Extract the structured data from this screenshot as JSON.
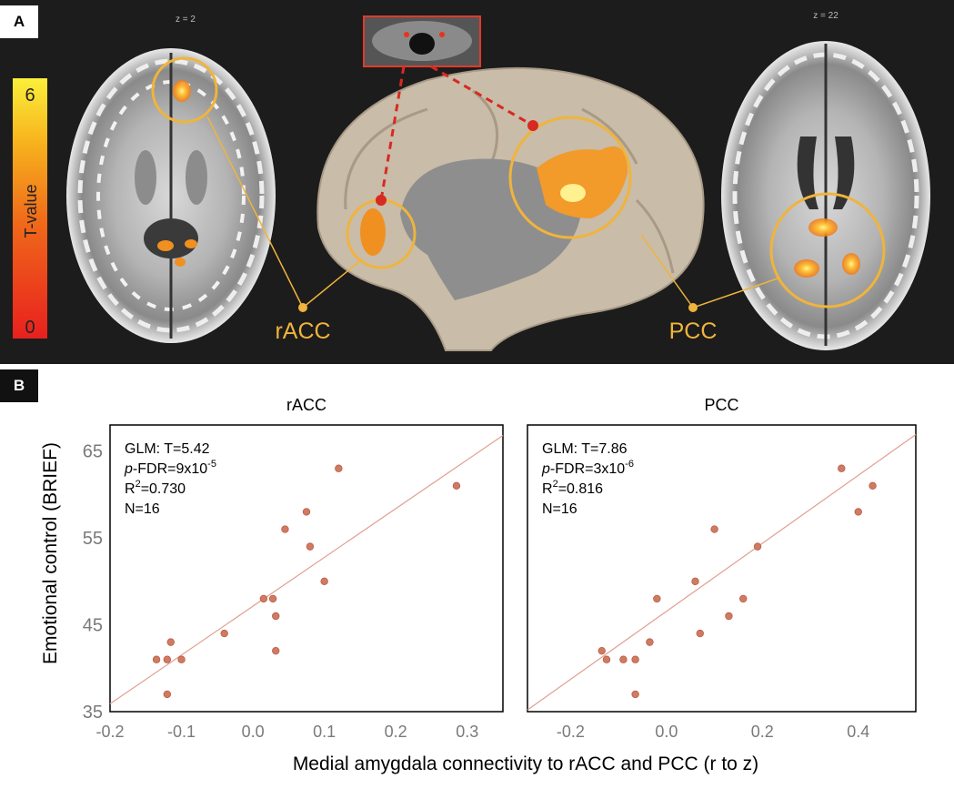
{
  "panel_a": {
    "label": "A",
    "slice_left": "z = 2",
    "slice_right": "z = 22",
    "colorbar": {
      "title": "T-value",
      "max": "6",
      "min": "0"
    },
    "region_left": "rACC",
    "region_right": "PCC"
  },
  "panel_b": {
    "label": "B",
    "y_label": "Emotional control (BRIEF)",
    "x_label": "Medial amygdala connectivity to rACC and PCC (r to z)"
  },
  "chart_data": [
    {
      "type": "scatter",
      "title": "rACC",
      "stats": {
        "glm": "GLM: T=5.42",
        "pfdr_pre": "-FDR=9x10",
        "pfdr_exp": "-5",
        "r2_val": "=0.730",
        "n": "N=16"
      },
      "x_ticks": [
        "-0.2",
        "-0.1",
        "0.0",
        "0.1",
        "0.2",
        "0.3"
      ],
      "y_ticks": [
        "35",
        "45",
        "55",
        "65"
      ],
      "xlim": [
        -0.2,
        0.35
      ],
      "ylim": [
        35,
        68
      ],
      "x": [
        -0.135,
        -0.12,
        -0.12,
        -0.115,
        -0.1,
        -0.04,
        0.015,
        0.028,
        0.032,
        0.032,
        0.045,
        0.075,
        0.08,
        0.1,
        0.12,
        0.285
      ],
      "y": [
        41,
        37,
        41,
        43,
        41,
        44,
        48,
        48,
        42,
        46,
        56,
        58,
        54,
        50,
        63,
        61
      ],
      "fit": {
        "x": [
          -0.2,
          0.35
        ],
        "y": [
          35.9,
          66.8
        ]
      }
    },
    {
      "type": "scatter",
      "title": "PCC",
      "stats": {
        "glm": "GLM: T=7.86",
        "pfdr_pre": "-FDR=3x10",
        "pfdr_exp": "-6",
        "r2_val": "=0.816",
        "n": "N=16"
      },
      "x_ticks": [
        "-0.2",
        "0.0",
        "0.2",
        "0.4"
      ],
      "y_ticks": [
        "35",
        "45",
        "55",
        "65"
      ],
      "xlim": [
        -0.29,
        0.52
      ],
      "ylim": [
        35,
        68
      ],
      "x": [
        -0.135,
        -0.125,
        -0.09,
        -0.065,
        -0.065,
        -0.035,
        -0.02,
        0.06,
        0.07,
        0.1,
        0.13,
        0.16,
        0.19,
        0.365,
        0.4,
        0.43
      ],
      "y": [
        42,
        41,
        41,
        41,
        37,
        43,
        48,
        50,
        44,
        56,
        46,
        48,
        54,
        63,
        58,
        61
      ],
      "fit": {
        "x": [
          -0.29,
          0.52
        ],
        "y": [
          35.2,
          66.9
        ]
      }
    }
  ]
}
